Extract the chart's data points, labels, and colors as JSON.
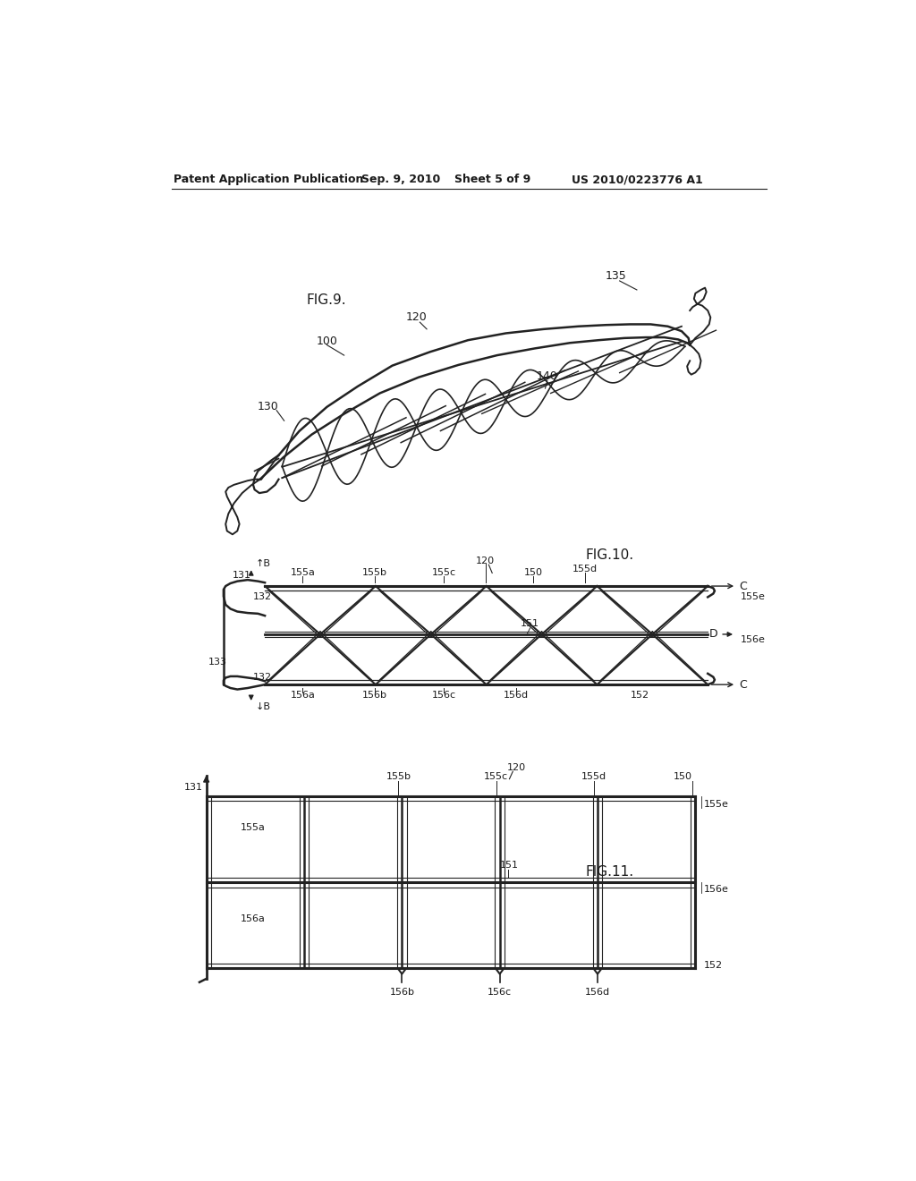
{
  "background_color": "#ffffff",
  "header_text": "Patent Application Publication",
  "header_date": "Sep. 9, 2010",
  "header_sheet": "Sheet 5 of 9",
  "header_patent": "US 2010/0223776 A1",
  "text_color": "#1a1a1a",
  "line_color": "#222222"
}
